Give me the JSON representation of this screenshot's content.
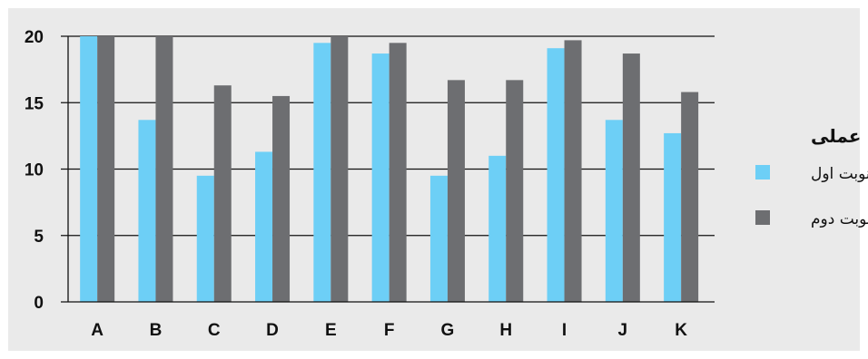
{
  "chart_data": {
    "type": "bar",
    "title": "",
    "xlabel": "",
    "ylabel": "",
    "categories": [
      "A",
      "B",
      "C",
      "D",
      "E",
      "F",
      "G",
      "H",
      "I",
      "J",
      "K"
    ],
    "series": [
      {
        "name": "نوبت اول",
        "color": "#6dcff6",
        "values": [
          20,
          13.7,
          9.5,
          11.3,
          19.5,
          18.7,
          9.5,
          11,
          19.1,
          13.7,
          12.7
        ]
      },
      {
        "name": "نوبت دوم",
        "color": "#6d6e71",
        "values": [
          20,
          20,
          16.3,
          15.5,
          20,
          19.5,
          16.7,
          16.7,
          19.7,
          18.7,
          15.8
        ]
      }
    ],
    "yticks": [
      0,
      5,
      10,
      15,
      20
    ],
    "ylim": [
      0,
      20
    ],
    "grid": true,
    "legend": {
      "title": "آزمون عملی",
      "position": "right"
    }
  }
}
